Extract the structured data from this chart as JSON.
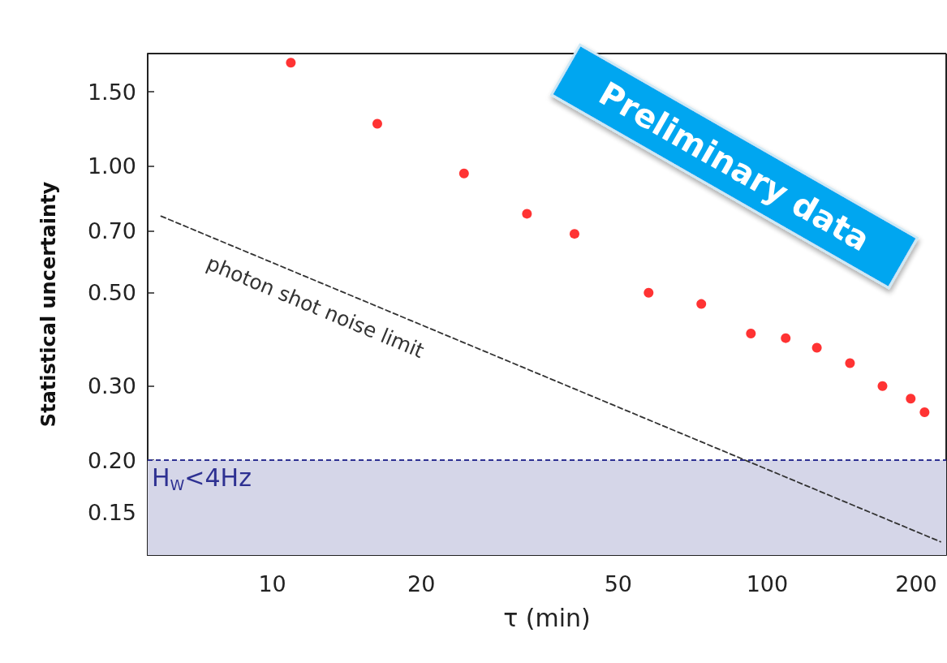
{
  "chart_data": {
    "type": "scatter",
    "xlabel": "τ (min)",
    "ylabel": "Statistical uncertainty",
    "log": "xy",
    "grid": false,
    "marker": "circle",
    "x": [
      10.9,
      16.3,
      24.4,
      32.7,
      40.8,
      57.6,
      73.6,
      92.7,
      109,
      126,
      147,
      171,
      195,
      208
    ],
    "series": [
      {
        "color": "#ff0000",
        "values": [
          1.76,
          1.26,
          0.96,
          0.77,
          0.69,
          0.5,
          0.47,
          0.4,
          0.39,
          0.37,
          0.34,
          0.3,
          0.28,
          0.26
        ]
      },
      {
        "type": "line",
        "color": "#333333",
        "line_style": "dashed",
        "marker": "none",
        "x": [
          5.96,
          224
        ],
        "values": [
          0.76,
          0.128
        ]
      }
    ],
    "xlim": [
      5.6,
      230
    ],
    "ylim": [
      0.119,
      1.85
    ],
    "xticks": [
      10,
      20,
      50,
      100,
      200
    ],
    "yticks": [
      {
        "value": 0.15,
        "label": "0.15"
      },
      {
        "value": 0.2,
        "label": "0.20"
      },
      {
        "value": 0.3,
        "label": "0.30"
      },
      {
        "value": 0.5,
        "label": "0.50"
      },
      {
        "value": 0.7,
        "label": "0.70"
      },
      {
        "value": 1.0,
        "label": "1.00"
      },
      {
        "value": 1.5,
        "label": "1.50"
      }
    ],
    "ref_lines": [
      {
        "axis": "y",
        "value": 0.2,
        "color": "#2e3192",
        "line_style": "dashed"
      }
    ],
    "bands": [
      {
        "axis": "y",
        "from": 0.119,
        "to": 0.2,
        "label": "H$_{W}$<4Hz",
        "color": "#d5d6e8"
      }
    ],
    "annotations": [
      "photon shot noise limit",
      "Preliminary data"
    ]
  }
}
